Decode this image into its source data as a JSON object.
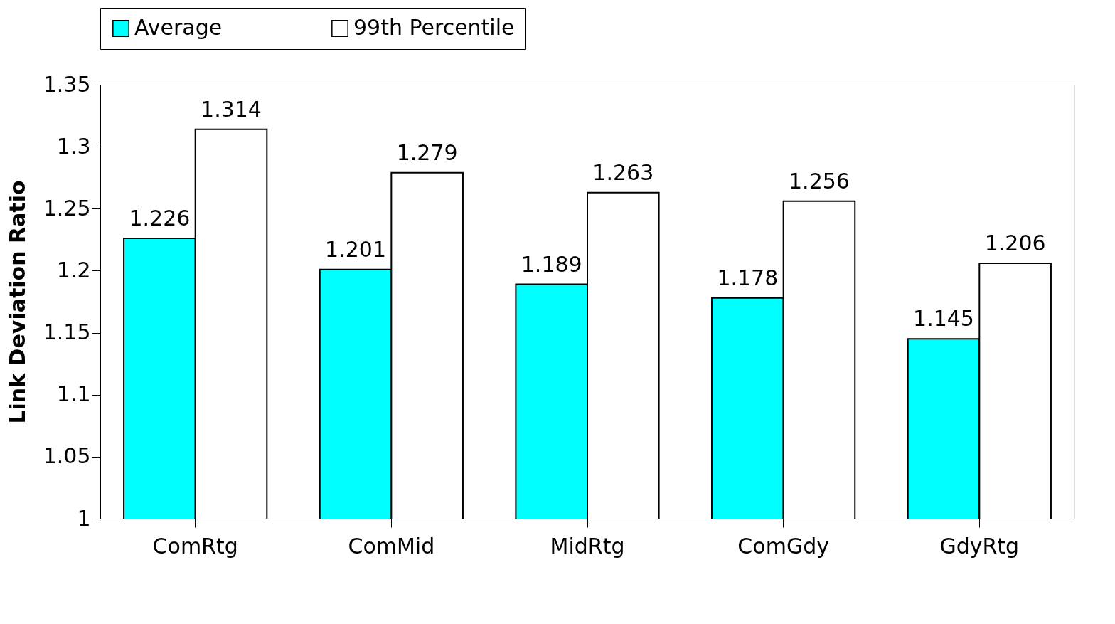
{
  "chart_data": {
    "type": "bar",
    "ylabel": "Link Deviation Ratio",
    "categories": [
      "ComRtg",
      "ComMid",
      "MidRtg",
      "ComGdy",
      "GdyRtg"
    ],
    "series": [
      {
        "name": "Average",
        "color": "#00ffff",
        "values": [
          1.226,
          1.201,
          1.189,
          1.178,
          1.145
        ]
      },
      {
        "name": "99th Percentile",
        "color": "#ffffff",
        "values": [
          1.314,
          1.279,
          1.263,
          1.256,
          1.206
        ]
      }
    ],
    "ylim": [
      1,
      1.35
    ],
    "yticks": [
      1,
      1.05,
      1.1,
      1.15,
      1.2,
      1.25,
      1.3,
      1.35
    ],
    "data_labels": true,
    "grid": false,
    "legend": "top"
  }
}
